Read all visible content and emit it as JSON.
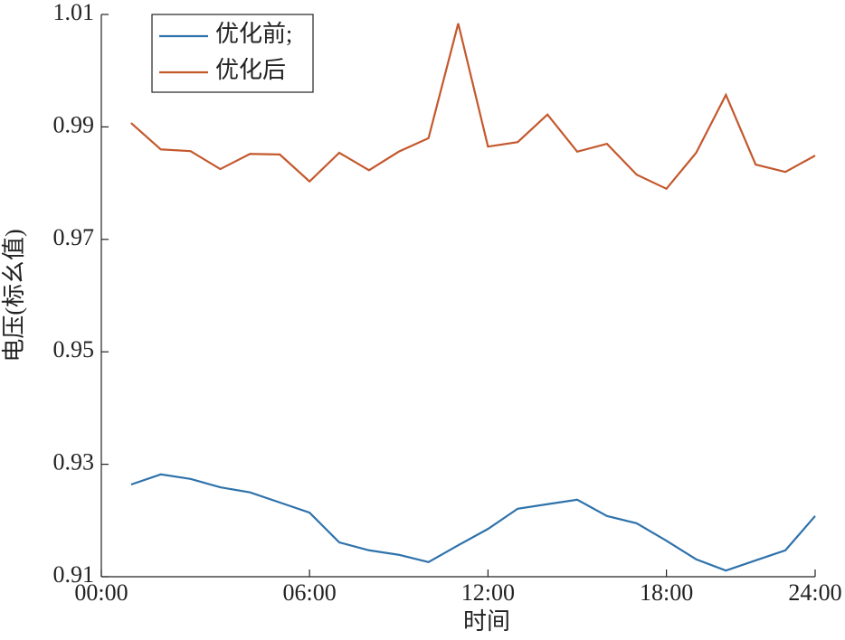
{
  "chart_data": {
    "type": "line",
    "x_label": "时间",
    "y_label": "电压(标幺值)",
    "x": [
      1,
      2,
      3,
      4,
      5,
      6,
      7,
      8,
      9,
      10,
      11,
      12,
      13,
      14,
      15,
      16,
      17,
      18,
      19,
      20,
      21,
      22,
      23,
      24
    ],
    "series": [
      {
        "name": "优化前;",
        "color": "#2f72ab",
        "values": [
          0.9264,
          0.9282,
          0.9274,
          0.9259,
          0.925,
          0.9232,
          0.9214,
          0.9161,
          0.9147,
          0.9139,
          0.9126,
          0.9156,
          0.9185,
          0.9221,
          0.9229,
          0.9237,
          0.9208,
          0.9195,
          0.9164,
          0.9131,
          0.9111,
          0.9129,
          0.9147,
          0.9208
        ]
      },
      {
        "name": "优化后",
        "color": "#c4582d",
        "values": [
          0.9907,
          0.986,
          0.9857,
          0.9825,
          0.9852,
          0.9851,
          0.9803,
          0.9854,
          0.9823,
          0.9856,
          0.988,
          1.0084,
          0.9865,
          0.9873,
          0.9922,
          0.9856,
          0.987,
          0.9815,
          0.979,
          0.9854,
          0.9957,
          0.9833,
          0.982,
          0.9849
        ]
      }
    ],
    "xlim": [
      0,
      24
    ],
    "xticks": [
      {
        "value": 0,
        "label": "00:00"
      },
      {
        "value": 7,
        "label": "06:00"
      },
      {
        "value": 13,
        "label": "12:00"
      },
      {
        "value": 19,
        "label": "18:00"
      },
      {
        "value": 24,
        "label": "24:00"
      }
    ],
    "ylim": [
      0.91,
      1.01
    ],
    "yticks": [
      0.91,
      0.93,
      0.95,
      0.97,
      0.99,
      1.01
    ],
    "legend": "upper-left"
  }
}
